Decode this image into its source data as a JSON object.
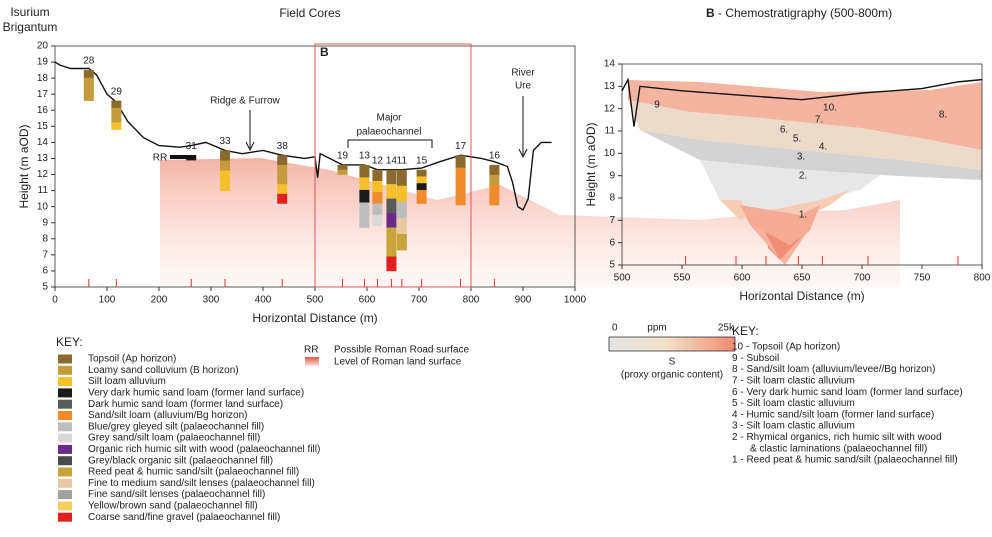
{
  "left": {
    "title": "Field Cores",
    "site": [
      "Isurium",
      "Brigantum"
    ],
    "box_label": "B",
    "x_label": "Horizontal Distance (m)",
    "y_label": "Height (m aOD)",
    "xlim": [
      0,
      1000
    ],
    "xticks": [
      0,
      100,
      200,
      300,
      400,
      500,
      600,
      700,
      800,
      900,
      1000
    ],
    "ylim": [
      5,
      20
    ],
    "yticks": [
      5,
      6,
      7,
      8,
      9,
      10,
      11,
      12,
      13,
      14,
      15,
      16,
      17,
      18,
      19,
      20
    ],
    "box_x": [
      500,
      800
    ],
    "annotations": {
      "ridge": "Ridge & Furrow",
      "channel": [
        "Major",
        "palaeochannel"
      ],
      "river": [
        "River",
        "Ure"
      ],
      "rr": "RR"
    },
    "surface": {
      "x": [
        0,
        10,
        20,
        30,
        45,
        65,
        80,
        100,
        118,
        140,
        170,
        200,
        240,
        262,
        290,
        327,
        360,
        400,
        437,
        480,
        500,
        505,
        510,
        553,
        595,
        620,
        647,
        667,
        705,
        740,
        780,
        820,
        845,
        870,
        880,
        890,
        900,
        910,
        920,
        935,
        955
      ],
      "y": [
        19,
        18.8,
        18.7,
        18.6,
        18.6,
        18.6,
        18.2,
        17,
        16.5,
        15.3,
        14.3,
        13.8,
        13.7,
        13.8,
        14,
        13.5,
        13.3,
        13.5,
        13.2,
        13,
        13.1,
        11.8,
        13.3,
        12.6,
        12.6,
        12.3,
        12.3,
        12.3,
        12.4,
        12.8,
        13.2,
        13,
        12.8,
        12.5,
        11.5,
        10,
        9.8,
        10.5,
        13.5,
        14,
        14
      ]
    },
    "cores": [
      {
        "label": "28",
        "x": 65,
        "top": 18.5,
        "bottom": 16.6
      },
      {
        "label": "29",
        "x": 118,
        "top": 16.6,
        "bottom": 14.8
      },
      {
        "label": "31",
        "x": 262,
        "top": 13.2,
        "bottom": 12.9
      },
      {
        "label": "33",
        "x": 327,
        "top": 13.5,
        "bottom": 11
      },
      {
        "label": "38",
        "x": 437,
        "top": 13.2,
        "bottom": 10.2
      },
      {
        "label": "19",
        "x": 553,
        "top": 12.6,
        "bottom": 12
      },
      {
        "label": "13",
        "x": 595,
        "top": 12.6,
        "bottom": 8.7
      },
      {
        "label": "12",
        "x": 620,
        "top": 12.3,
        "bottom": 8.8
      },
      {
        "label": "14",
        "x": 647,
        "top": 12.3,
        "bottom": 6
      },
      {
        "label": "11",
        "x": 667,
        "top": 12.3,
        "bottom": 7.3
      },
      {
        "label": "15",
        "x": 705,
        "top": 12.3,
        "bottom": 10.2
      },
      {
        "label": "17",
        "x": 780,
        "top": 13.2,
        "bottom": 10.1
      },
      {
        "label": "16",
        "x": 845,
        "top": 12.6,
        "bottom": 10.1
      }
    ],
    "key_title": "KEY:",
    "key": [
      {
        "name": "Topsoil (Ap horizon)",
        "color": "#8b6a2e"
      },
      {
        "name": "Loamy sand colluvium (B horizon)",
        "color": "#c49a3a"
      },
      {
        "name": "Silt loam alluvium",
        "color": "#f5c02a"
      },
      {
        "name": "Very dark humic sand loam (former land surface)",
        "color": "#1a1a1a"
      },
      {
        "name": "Dark humic sand loam (former land surface)",
        "color": "#5a5a5a"
      },
      {
        "name": "Sand/silt loam (alluvium/Bg horizon)",
        "color": "#f08a2a"
      },
      {
        "name": "Blue/grey gleyed silt (palaeochannel fill)",
        "color": "#bdbdbd"
      },
      {
        "name": "Grey sand/silt loam (palaeochannel fill)",
        "color": "#d9d9d9"
      },
      {
        "name": "Organic rich humic silt with wood (palaeochannel fill)",
        "color": "#6a2a8a"
      },
      {
        "name": "Grey/black organic silt (palaeochannel fill)",
        "color": "#4a4a4a"
      },
      {
        "name": "Reed peat & humic sand/silt (palaeochannel fill)",
        "color": "#c9a43a"
      },
      {
        "name": "Fine to medium sand/silt lenses (palaeochannel fill)",
        "color": "#e8c8a0"
      },
      {
        "name": "Fine sand/silt lenses (palaeochannel fill)",
        "color": "#a0a0a0"
      },
      {
        "name": "Yellow/brown sand (palaeochannel fill)",
        "color": "#f5d060"
      },
      {
        "name": "Coarse sand/fine gravel (palaeochannel fill)",
        "color": "#e02020"
      }
    ],
    "rr_key": {
      "code": "RR",
      "road": "Possible Roman Road surface",
      "level": "Level of Roman land surface"
    }
  },
  "right": {
    "panel_label": "B",
    "title": " - Chemostratigraphy (500-800m)",
    "x_label": "Horizontal Distance (m)",
    "y_label": "Height (m aOD)",
    "xlim": [
      500,
      800
    ],
    "xticks": [
      500,
      550,
      600,
      650,
      700,
      750,
      800
    ],
    "ylim": [
      5,
      14
    ],
    "yticks": [
      5,
      6,
      7,
      8,
      9,
      10,
      11,
      12,
      13,
      14
    ],
    "surface": {
      "x": [
        500,
        505,
        510,
        515,
        550,
        600,
        650,
        700,
        750,
        780,
        800
      ],
      "y": [
        12.8,
        13.3,
        11.2,
        13,
        12.8,
        12.6,
        12.4,
        12.7,
        12.9,
        13.2,
        13.3
      ]
    },
    "unit_labels": [
      "1.",
      "2.",
      "3.",
      "4.",
      "5.",
      "6.",
      "7.",
      "8.",
      "9",
      "10."
    ],
    "colorbar": {
      "min": "0",
      "unit": "ppm",
      "max": "25k",
      "element": "S",
      "caption": "(proxy organic content)"
    },
    "key_title": "KEY:",
    "key": [
      "10 - Topsoil (Ap horizon)",
      "9 - Subsoil",
      "8 - Sand/silt loam (alluvium/levee//Bg horizon)",
      "7 - Silt loam clastic alluvium",
      "6 - Very dark humic sand loam (former land surface)",
      "5 - Silt loam clastic alluvium",
      "4 - Humic sand/silt loam (former land surface)",
      "3 - Silt loam clastic alluvium",
      "2 - Rhymical organics, rich humic silt with wood",
      "& clastic laminations (palaeochannel fill)",
      "1 - Reed peat & humic sand/silt (palaeochannel fill)"
    ]
  }
}
